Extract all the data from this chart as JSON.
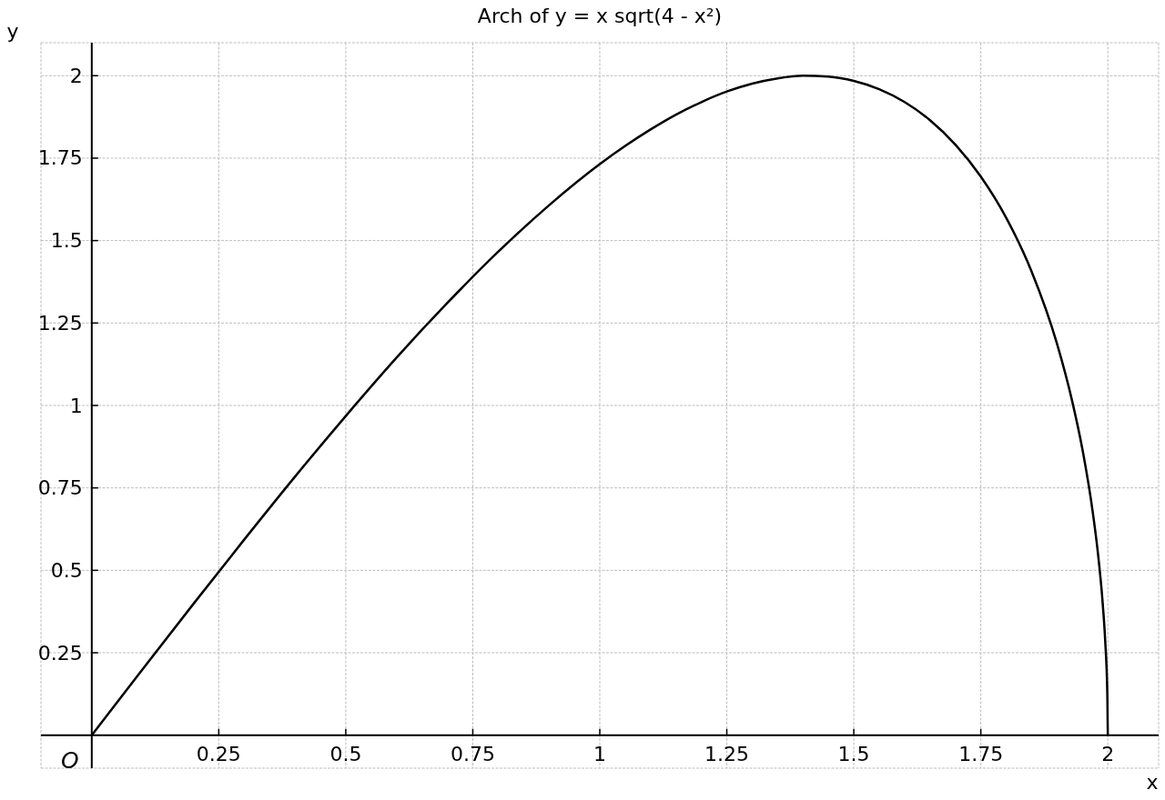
{
  "chart_data": {
    "type": "line",
    "title": "Arch of y = x sqrt(4 - x²)",
    "xlabel": "x",
    "ylabel": "y",
    "x": [
      0,
      0.1,
      0.2,
      0.3,
      0.4,
      0.5,
      0.6,
      0.7,
      0.8,
      0.9,
      1.0,
      1.05,
      1.1,
      1.15,
      1.2,
      1.25,
      1.3,
      1.35,
      1.4,
      1.45,
      1.5,
      1.55,
      1.6,
      1.65,
      1.7,
      1.75,
      1.8,
      1.85,
      1.9,
      1.93,
      1.95,
      1.97,
      1.98,
      1.99,
      1.995,
      1.999,
      2.0
    ],
    "values": [
      0,
      0.2,
      0.398,
      0.593,
      0.784,
      0.968,
      1.145,
      1.311,
      1.466,
      1.607,
      1.732,
      1.787,
      1.837,
      1.882,
      1.92,
      1.952,
      1.976,
      1.992,
      2.0,
      1.997,
      1.984,
      1.959,
      1.92,
      1.865,
      1.791,
      1.694,
      1.569,
      1.406,
      1.187,
      1.012,
      0.867,
      0.68,
      0.559,
      0.398,
      0.282,
      0.126,
      0
    ],
    "color": "#000000",
    "xlim": [
      -0.1,
      2.1
    ],
    "ylim": [
      -0.1,
      2.1
    ],
    "xticks": [
      0.25,
      0.5,
      0.75,
      1,
      1.25,
      1.5,
      1.75,
      2
    ],
    "yticks": [
      0.25,
      0.5,
      0.75,
      1,
      1.25,
      1.5,
      1.75,
      2
    ],
    "grid": true,
    "annotations": [
      {
        "text": "O",
        "x": 0,
        "y": 0
      }
    ]
  }
}
